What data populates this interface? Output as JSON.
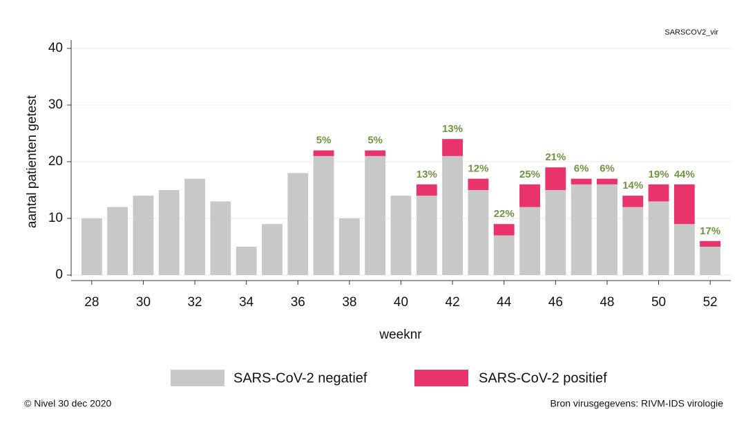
{
  "chart_data": {
    "type": "bar",
    "stacked": true,
    "x": [
      28,
      29,
      30,
      31,
      32,
      33,
      34,
      35,
      36,
      37,
      38,
      39,
      40,
      41,
      42,
      43,
      44,
      45,
      46,
      47,
      48,
      49,
      50,
      51,
      52
    ],
    "series": [
      {
        "name": "SARS-CoV-2 negatief",
        "color": "#c8c8c8",
        "values": [
          10,
          12,
          14,
          15,
          17,
          13,
          5,
          9,
          18,
          21,
          10,
          21,
          14,
          14,
          21,
          15,
          7,
          12,
          15,
          16,
          16,
          12,
          13,
          9,
          5
        ]
      },
      {
        "name": "SARS-CoV-2 positief",
        "color": "#e8336b",
        "values": [
          0,
          0,
          0,
          0,
          0,
          0,
          0,
          0,
          0,
          1,
          0,
          1,
          0,
          2,
          3,
          2,
          2,
          4,
          4,
          1,
          1,
          2,
          3,
          7,
          1
        ]
      }
    ],
    "percent_labels": [
      null,
      null,
      null,
      null,
      null,
      null,
      null,
      null,
      null,
      "5%",
      null,
      "5%",
      null,
      "13%",
      "13%",
      "12%",
      "22%",
      "25%",
      "21%",
      "6%",
      "6%",
      "14%",
      "19%",
      "44%",
      "17%"
    ],
    "percent_label_color": "#6f9444",
    "xlim": [
      27.2,
      52.8
    ],
    "xticks": [
      28,
      30,
      32,
      34,
      36,
      38,
      40,
      42,
      44,
      46,
      48,
      50,
      52
    ],
    "ylim": [
      0,
      40
    ],
    "yticks": [
      0,
      10,
      20,
      30,
      40
    ],
    "grid": true,
    "x_label": "weeknr",
    "y_label": "aantal patienten getest",
    "corner_label": "SARSCOV2_vir",
    "footer_left": "© Nivel 30 dec 2020",
    "footer_right": "Bron virusgegevens: RIVM-IDS virologie"
  }
}
